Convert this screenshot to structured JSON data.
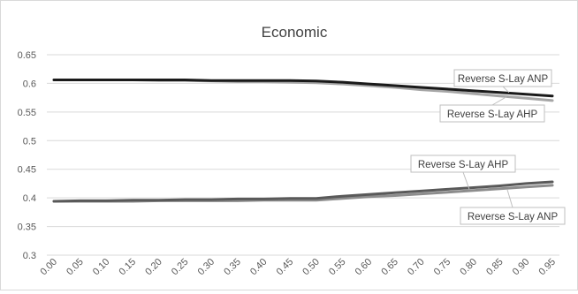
{
  "chart_data": {
    "type": "line",
    "title": "Economic",
    "xlabel": "",
    "ylabel": "",
    "x": [
      "0.00",
      "0.05",
      "0.10",
      "0.15",
      "0.20",
      "0.25",
      "0.30",
      "0.35",
      "0.40",
      "0.45",
      "0.50",
      "0.55",
      "0.60",
      "0.65",
      "0.70",
      "0.75",
      "0.80",
      "0.85",
      "0.90",
      "0.95"
    ],
    "ylim": [
      0.3,
      0.65
    ],
    "yticks": [
      "0.3",
      "0.35",
      "0.4",
      "0.45",
      "0.5",
      "0.55",
      "0.6",
      "0.65"
    ],
    "grid": true,
    "series": [
      {
        "name": "Reverse S-Lay ANP",
        "color": "#1a1a1a",
        "values": [
          0.606,
          0.606,
          0.606,
          0.606,
          0.606,
          0.606,
          0.605,
          0.605,
          0.605,
          0.605,
          0.604,
          0.602,
          0.599,
          0.596,
          0.593,
          0.59,
          0.587,
          0.584,
          0.581,
          0.578
        ]
      },
      {
        "name": "Reverse S-Lay AHP",
        "color": "#a6a6a6",
        "values": [
          0.606,
          0.606,
          0.606,
          0.606,
          0.605,
          0.605,
          0.604,
          0.603,
          0.603,
          0.602,
          0.601,
          0.599,
          0.596,
          0.593,
          0.589,
          0.586,
          0.582,
          0.578,
          0.574,
          0.57
        ]
      },
      {
        "name": "Reverse S-Lay AHP",
        "color": "#595959",
        "values": [
          0.394,
          0.395,
          0.395,
          0.396,
          0.396,
          0.397,
          0.397,
          0.398,
          0.398,
          0.399,
          0.399,
          0.403,
          0.406,
          0.409,
          0.412,
          0.415,
          0.418,
          0.421,
          0.425,
          0.428
        ]
      },
      {
        "name": "Reverse S-Lay ANP",
        "color": "#8c8c8c",
        "values": [
          0.394,
          0.394,
          0.394,
          0.394,
          0.395,
          0.395,
          0.395,
          0.395,
          0.396,
          0.396,
          0.396,
          0.399,
          0.402,
          0.404,
          0.407,
          0.41,
          0.413,
          0.416,
          0.419,
          0.422
        ]
      }
    ],
    "annotations": [
      {
        "text": "Reverse S-Lay ANP",
        "series": 0
      },
      {
        "text": "Reverse S-Lay AHP",
        "series": 1
      },
      {
        "text": "Reverse S-Lay AHP",
        "series": 2
      },
      {
        "text": "Reverse S-Lay ANP",
        "series": 3
      }
    ]
  }
}
